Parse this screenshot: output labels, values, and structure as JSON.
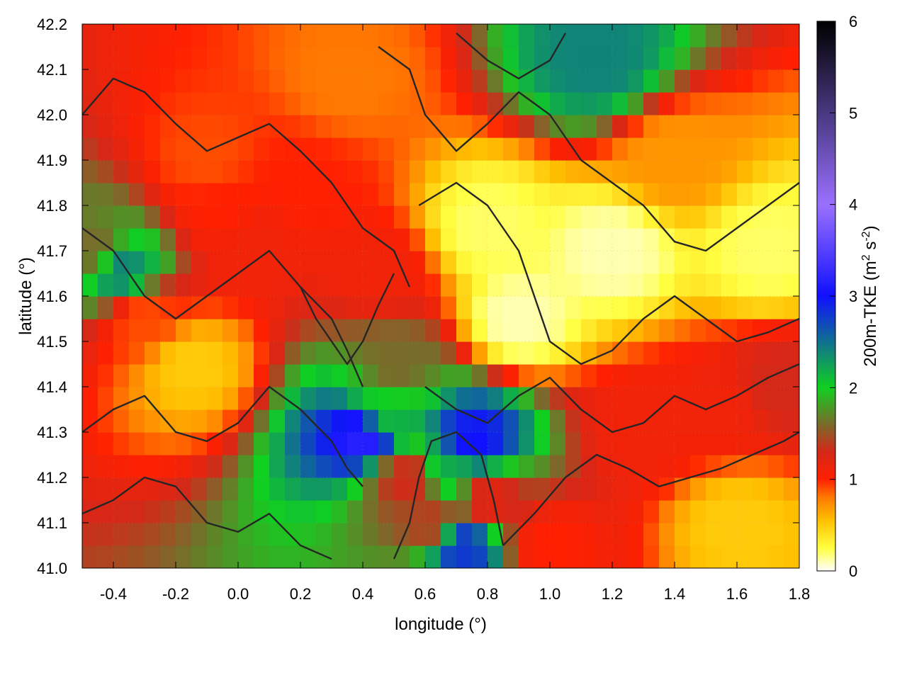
{
  "chart_data": {
    "type": "heatmap",
    "title": "",
    "xlabel": "longitude (°)",
    "ylabel": "latitude (°)",
    "xlim": [
      -0.5,
      1.8
    ],
    "ylim": [
      41.0,
      42.2
    ],
    "x_ticks": [
      "-0.4",
      "-0.2",
      "0.0",
      "0.2",
      "0.4",
      "0.6",
      "0.8",
      "1.0",
      "1.2",
      "1.4",
      "1.6",
      "1.8"
    ],
    "x_tick_values": [
      -0.4,
      -0.2,
      0.0,
      0.2,
      0.4,
      0.6,
      0.8,
      1.0,
      1.2,
      1.4,
      1.6,
      1.8
    ],
    "y_ticks": [
      "41.0",
      "41.1",
      "41.2",
      "41.3",
      "41.4",
      "41.5",
      "41.6",
      "41.7",
      "41.8",
      "41.9",
      "42.0",
      "42.1",
      "42.2"
    ],
    "y_tick_values": [
      41.0,
      41.1,
      41.2,
      41.3,
      41.4,
      41.5,
      41.6,
      41.7,
      41.8,
      41.9,
      42.0,
      42.1,
      42.2
    ],
    "grid": true,
    "colorbar": {
      "label_main": "200m-TKE (m",
      "label_sup1": "2",
      "label_mid": " s",
      "label_sup2": "-2",
      "label_end": ")",
      "range": [
        0,
        6
      ],
      "ticks": [
        "0",
        "1",
        "2",
        "3",
        "4",
        "5",
        "6"
      ],
      "tick_values": [
        0,
        1,
        2,
        3,
        4,
        5,
        6
      ],
      "colormap": [
        {
          "v": 0.0,
          "color": "#ffffff"
        },
        {
          "v": 0.25,
          "color": "#ffff40"
        },
        {
          "v": 0.55,
          "color": "#ffc000"
        },
        {
          "v": 0.8,
          "color": "#ff7a00"
        },
        {
          "v": 1.0,
          "color": "#ff2000"
        },
        {
          "v": 1.3,
          "color": "#d42818"
        },
        {
          "v": 1.6,
          "color": "#7a6a2a"
        },
        {
          "v": 2.0,
          "color": "#10d020"
        },
        {
          "v": 3.0,
          "color": "#1010ff"
        },
        {
          "v": 4.0,
          "color": "#9a70ff"
        },
        {
          "v": 5.0,
          "color": "#483880"
        },
        {
          "v": 6.0,
          "color": "#000000"
        }
      ]
    },
    "tke_field": [
      {
        "lon": -0.45,
        "lat": 41.7,
        "value": 1.6
      },
      {
        "lon": -0.38,
        "lat": 41.66,
        "value": 2.4
      },
      {
        "lon": -0.3,
        "lat": 41.55,
        "value": 0.9
      },
      {
        "lon": -0.15,
        "lat": 41.45,
        "value": 0.5
      },
      {
        "lon": -0.1,
        "lat": 41.9,
        "value": 0.9
      },
      {
        "lon": -0.05,
        "lat": 41.8,
        "value": 1.0
      },
      {
        "lon": 0.05,
        "lat": 41.72,
        "value": 1.1
      },
      {
        "lon": 0.2,
        "lat": 41.85,
        "value": 1.0
      },
      {
        "lon": 0.35,
        "lat": 42.08,
        "value": 0.8
      },
      {
        "lon": 0.45,
        "lat": 41.65,
        "value": 1.1
      },
      {
        "lon": 0.5,
        "lat": 41.45,
        "value": 1.6
      },
      {
        "lon": 0.45,
        "lat": 41.35,
        "value": 2.0
      },
      {
        "lon": 0.4,
        "lat": 41.3,
        "value": 3.2
      },
      {
        "lon": 0.55,
        "lat": 41.2,
        "value": 1.3
      },
      {
        "lon": 0.62,
        "lat": 41.1,
        "value": 1.4
      },
      {
        "lon": 0.68,
        "lat": 41.22,
        "value": 2.2
      },
      {
        "lon": 0.72,
        "lat": 41.05,
        "value": 2.8
      },
      {
        "lon": 0.75,
        "lat": 41.28,
        "value": 3.0
      },
      {
        "lon": 0.8,
        "lat": 41.15,
        "value": 1.2
      },
      {
        "lon": 0.8,
        "lat": 41.75,
        "value": 0.2
      },
      {
        "lon": 0.9,
        "lat": 41.55,
        "value": 0.1
      },
      {
        "lon": 1.0,
        "lat": 41.05,
        "value": 1.0
      },
      {
        "lon": 1.15,
        "lat": 42.12,
        "value": 2.4
      },
      {
        "lon": 1.2,
        "lat": 41.7,
        "value": 0.1
      },
      {
        "lon": 1.3,
        "lat": 41.3,
        "value": 1.1
      },
      {
        "lon": 1.4,
        "lat": 41.9,
        "value": 0.7
      },
      {
        "lon": 1.55,
        "lat": 41.35,
        "value": 1.1
      },
      {
        "lon": 1.6,
        "lat": 41.1,
        "value": 0.5
      },
      {
        "lon": 1.75,
        "lat": 41.4,
        "value": 1.3
      },
      {
        "lon": 1.7,
        "lat": 41.7,
        "value": 0.2
      }
    ],
    "contours": [
      [
        [
          -0.5,
          42.0
        ],
        [
          -0.4,
          42.08
        ],
        [
          -0.3,
          42.05
        ],
        [
          -0.2,
          41.98
        ],
        [
          -0.1,
          41.92
        ],
        [
          0.0,
          41.95
        ],
        [
          0.1,
          41.98
        ],
        [
          0.2,
          41.92
        ],
        [
          0.3,
          41.85
        ],
        [
          0.4,
          41.75
        ],
        [
          0.5,
          41.7
        ],
        [
          0.55,
          41.62
        ]
      ],
      [
        [
          -0.5,
          41.75
        ],
        [
          -0.4,
          41.7
        ],
        [
          -0.3,
          41.6
        ],
        [
          -0.2,
          41.55
        ],
        [
          -0.1,
          41.6
        ],
        [
          0.0,
          41.65
        ],
        [
          0.1,
          41.7
        ],
        [
          0.2,
          41.62
        ],
        [
          0.3,
          41.55
        ],
        [
          0.35,
          41.48
        ],
        [
          0.4,
          41.4
        ]
      ],
      [
        [
          -0.5,
          41.3
        ],
        [
          -0.4,
          41.35
        ],
        [
          -0.3,
          41.38
        ],
        [
          -0.2,
          41.3
        ],
        [
          -0.1,
          41.28
        ],
        [
          0.0,
          41.32
        ],
        [
          0.1,
          41.4
        ],
        [
          0.2,
          41.35
        ],
        [
          0.3,
          41.28
        ],
        [
          0.35,
          41.22
        ],
        [
          0.4,
          41.18
        ]
      ],
      [
        [
          -0.5,
          41.12
        ],
        [
          -0.4,
          41.15
        ],
        [
          -0.3,
          41.2
        ],
        [
          -0.2,
          41.18
        ],
        [
          -0.1,
          41.1
        ],
        [
          0.0,
          41.08
        ],
        [
          0.1,
          41.12
        ],
        [
          0.2,
          41.05
        ],
        [
          0.3,
          41.02
        ]
      ],
      [
        [
          0.45,
          42.15
        ],
        [
          0.55,
          42.1
        ],
        [
          0.6,
          42.0
        ],
        [
          0.7,
          41.92
        ],
        [
          0.8,
          41.98
        ],
        [
          0.9,
          42.05
        ],
        [
          1.0,
          42.0
        ],
        [
          1.1,
          41.9
        ],
        [
          1.2,
          41.85
        ],
        [
          1.3,
          41.8
        ],
        [
          1.4,
          41.72
        ],
        [
          1.5,
          41.7
        ],
        [
          1.6,
          41.75
        ],
        [
          1.7,
          41.8
        ],
        [
          1.8,
          41.85
        ]
      ],
      [
        [
          0.58,
          41.8
        ],
        [
          0.7,
          41.85
        ],
        [
          0.8,
          41.8
        ],
        [
          0.9,
          41.7
        ],
        [
          0.95,
          41.6
        ],
        [
          1.0,
          41.5
        ],
        [
          1.1,
          41.45
        ],
        [
          1.2,
          41.48
        ],
        [
          1.3,
          41.55
        ],
        [
          1.4,
          41.6
        ],
        [
          1.5,
          41.55
        ],
        [
          1.6,
          41.5
        ],
        [
          1.7,
          41.52
        ],
        [
          1.8,
          41.55
        ]
      ],
      [
        [
          0.6,
          41.4
        ],
        [
          0.7,
          41.35
        ],
        [
          0.8,
          41.32
        ],
        [
          0.9,
          41.38
        ],
        [
          1.0,
          41.42
        ],
        [
          1.1,
          41.35
        ],
        [
          1.2,
          41.3
        ],
        [
          1.3,
          41.32
        ],
        [
          1.4,
          41.38
        ],
        [
          1.5,
          41.35
        ],
        [
          1.6,
          41.38
        ],
        [
          1.7,
          41.42
        ],
        [
          1.8,
          41.45
        ]
      ],
      [
        [
          0.85,
          41.05
        ],
        [
          0.95,
          41.12
        ],
        [
          1.05,
          41.2
        ],
        [
          1.15,
          41.25
        ],
        [
          1.25,
          41.22
        ],
        [
          1.35,
          41.18
        ],
        [
          1.45,
          41.2
        ],
        [
          1.55,
          41.22
        ],
        [
          1.65,
          41.25
        ],
        [
          1.75,
          41.28
        ],
        [
          1.8,
          41.3
        ]
      ],
      [
        [
          0.5,
          41.02
        ],
        [
          0.55,
          41.1
        ],
        [
          0.58,
          41.2
        ],
        [
          0.62,
          41.28
        ],
        [
          0.7,
          41.3
        ],
        [
          0.78,
          41.25
        ],
        [
          0.82,
          41.15
        ],
        [
          0.85,
          41.05
        ]
      ],
      [
        [
          0.7,
          42.18
        ],
        [
          0.8,
          42.12
        ],
        [
          0.9,
          42.08
        ],
        [
          1.0,
          42.12
        ],
        [
          1.05,
          42.18
        ]
      ],
      [
        [
          0.2,
          41.62
        ],
        [
          0.25,
          41.55
        ],
        [
          0.3,
          41.5
        ],
        [
          0.35,
          41.45
        ],
        [
          0.4,
          41.5
        ],
        [
          0.45,
          41.58
        ],
        [
          0.5,
          41.65
        ]
      ]
    ]
  }
}
